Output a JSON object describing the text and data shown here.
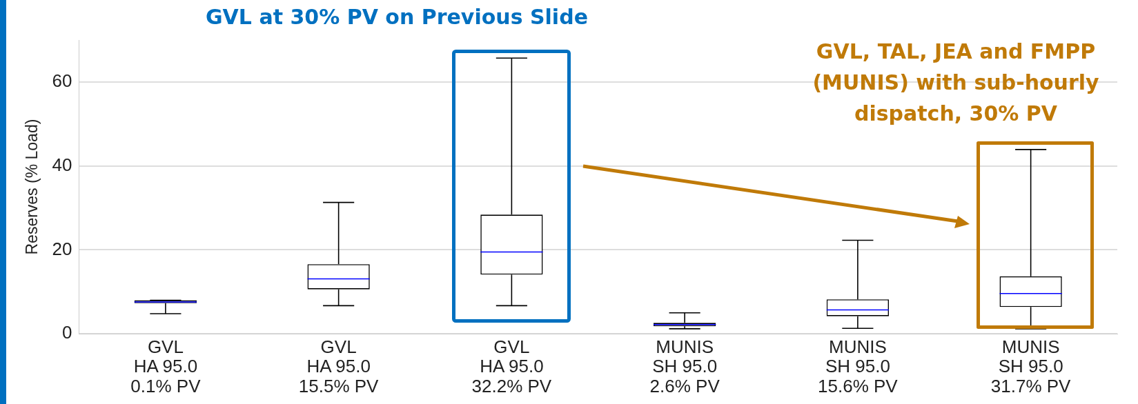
{
  "chart_data": {
    "type": "box",
    "ylabel": "Reserves (% Load)",
    "categories": [
      "GVL\nHA 95.0\n0.1% PV",
      "GVL\nHA 95.0\n15.5% PV",
      "GVL\nHA 95.0\n32.2% PV",
      "MUNIS\nSH 95.0\n2.6% PV",
      "MUNIS\nSH 95.0\n15.6% PV",
      "MUNIS\nSH 95.0\n31.7% PV"
    ],
    "boxes": [
      {
        "low": 4.8,
        "q1": 7.3,
        "median": 7.6,
        "q3": 8.0,
        "high": 8.0
      },
      {
        "low": 6.7,
        "q1": 10.6,
        "median": 13.1,
        "q3": 16.6,
        "high": 31.3
      },
      {
        "low": 6.7,
        "q1": 14.1,
        "median": 19.5,
        "q3": 28.4,
        "high": 65.7
      },
      {
        "low": 1.2,
        "q1": 1.8,
        "median": 2.2,
        "q3": 2.6,
        "high": 5.0
      },
      {
        "low": 1.3,
        "q1": 4.2,
        "median": 5.7,
        "q3": 8.2,
        "high": 22.3
      },
      {
        "low": 1.2,
        "q1": 6.4,
        "median": 9.6,
        "q3": 13.7,
        "high": 43.9
      }
    ],
    "ylim": [
      0,
      70
    ],
    "yticks": [
      0,
      20,
      40,
      60
    ],
    "grid": "y",
    "annotations": [
      "GVL at 30% PV on Previous Slide",
      "GVL, TAL, JEA and FMPP (MUNIS) with sub-hourly dispatch, 30% PV"
    ]
  }
}
